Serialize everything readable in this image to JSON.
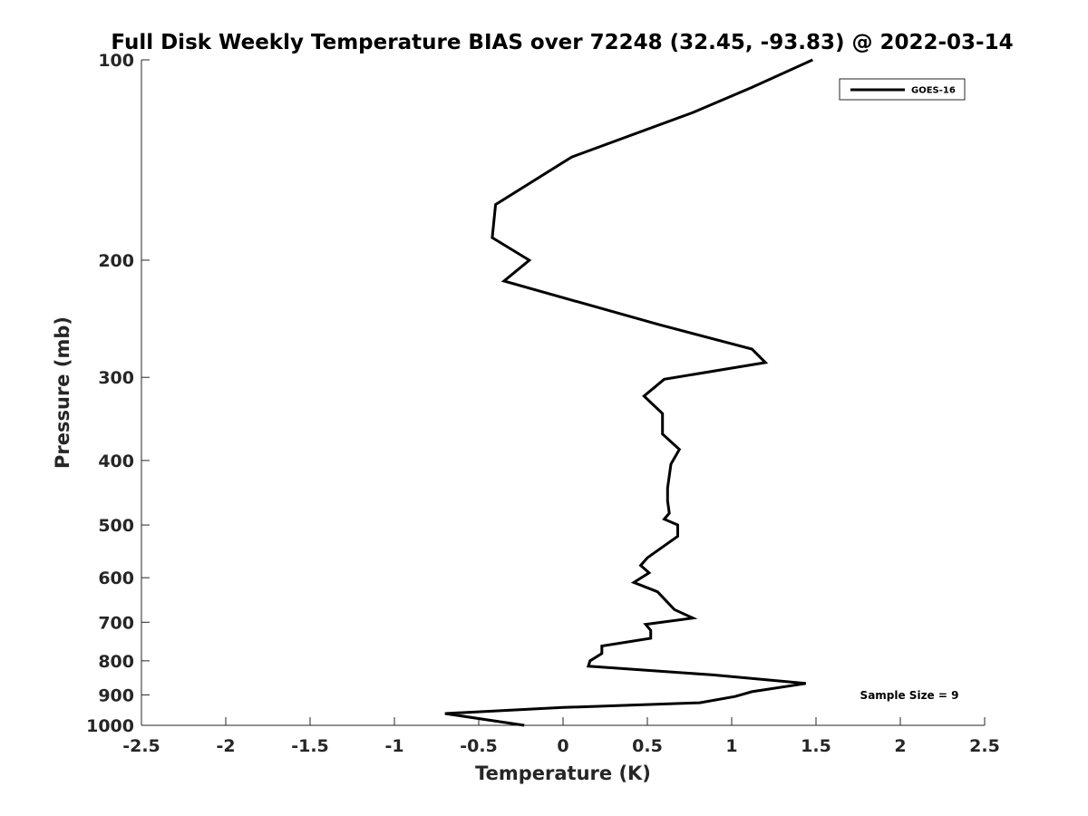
{
  "chart_data": {
    "type": "line",
    "title": "Full Disk Weekly Temperature BIAS over 72248 (32.45, -93.83) @ 2022-03-14",
    "xlabel": "Temperature (K)",
    "ylabel": "Pressure (mb)",
    "xlim": [
      -2.5,
      2.5
    ],
    "ylim": [
      100,
      1000
    ],
    "y_scale": "log",
    "y_reversed": true,
    "grid": false,
    "legend_position": "top-right",
    "annotation": "Sample Size = 9",
    "x_ticks": [
      -2.5,
      -2,
      -1.5,
      -1,
      -0.5,
      0,
      0.5,
      1,
      1.5,
      2,
      2.5
    ],
    "x_tick_labels": [
      "-2.5",
      "-2",
      "-1.5",
      "-1",
      "-0.5",
      "0",
      "0.5",
      "1",
      "1.5",
      "2",
      "2.5"
    ],
    "y_ticks": [
      100,
      200,
      300,
      400,
      500,
      600,
      700,
      800,
      900,
      1000
    ],
    "y_tick_labels": [
      "100",
      "200",
      "300",
      "400",
      "500",
      "600",
      "700",
      "800",
      "900",
      "1000"
    ],
    "series": [
      {
        "name": "GOES-16",
        "color": "#000000",
        "points": [
          {
            "t": 1.48,
            "p": 100
          },
          {
            "t": 1.12,
            "p": 110
          },
          {
            "t": 0.77,
            "p": 120
          },
          {
            "t": 0.05,
            "p": 140
          },
          {
            "t": -0.4,
            "p": 165
          },
          {
            "t": -0.42,
            "p": 185
          },
          {
            "t": -0.2,
            "p": 200
          },
          {
            "t": -0.35,
            "p": 215
          },
          {
            "t": 0.57,
            "p": 250
          },
          {
            "t": 1.12,
            "p": 272
          },
          {
            "t": 1.2,
            "p": 285
          },
          {
            "t": 0.6,
            "p": 302
          },
          {
            "t": 0.48,
            "p": 320
          },
          {
            "t": 0.59,
            "p": 340
          },
          {
            "t": 0.59,
            "p": 365
          },
          {
            "t": 0.69,
            "p": 385
          },
          {
            "t": 0.64,
            "p": 405
          },
          {
            "t": 0.62,
            "p": 440
          },
          {
            "t": 0.62,
            "p": 460
          },
          {
            "t": 0.63,
            "p": 480
          },
          {
            "t": 0.6,
            "p": 490
          },
          {
            "t": 0.68,
            "p": 500
          },
          {
            "t": 0.68,
            "p": 520
          },
          {
            "t": 0.5,
            "p": 560
          },
          {
            "t": 0.46,
            "p": 575
          },
          {
            "t": 0.51,
            "p": 590
          },
          {
            "t": 0.42,
            "p": 610
          },
          {
            "t": 0.56,
            "p": 630
          },
          {
            "t": 0.66,
            "p": 670
          },
          {
            "t": 0.77,
            "p": 690
          },
          {
            "t": 0.49,
            "p": 705
          },
          {
            "t": 0.52,
            "p": 720
          },
          {
            "t": 0.52,
            "p": 740
          },
          {
            "t": 0.23,
            "p": 760
          },
          {
            "t": 0.23,
            "p": 780
          },
          {
            "t": 0.16,
            "p": 800
          },
          {
            "t": 0.15,
            "p": 815
          },
          {
            "t": 0.89,
            "p": 840
          },
          {
            "t": 1.44,
            "p": 865
          },
          {
            "t": 1.12,
            "p": 890
          },
          {
            "t": 1.02,
            "p": 905
          },
          {
            "t": 0.81,
            "p": 925
          },
          {
            "t": 0.0,
            "p": 940
          },
          {
            "t": -0.7,
            "p": 960
          },
          {
            "t": -0.23,
            "p": 1000
          }
        ]
      }
    ]
  }
}
